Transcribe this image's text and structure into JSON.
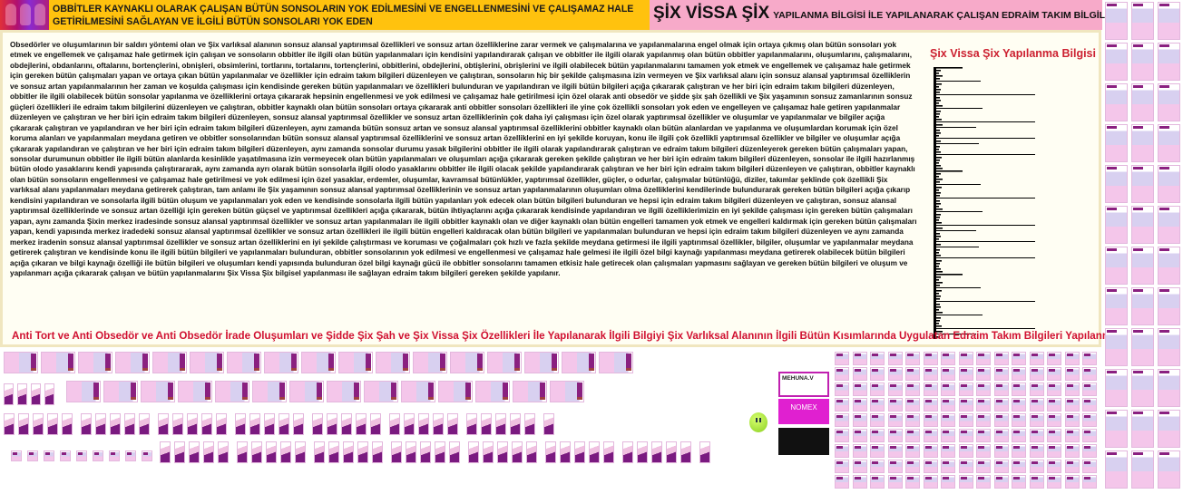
{
  "header": {
    "left_title": "OBBİTLER KAYNAKLI OLARAK ÇALIŞAN BÜTÜN SONSOLARIN YOK EDİLMESİNİ VE ENGELLENMESİNİ VE ÇALIŞAMAZ HALE GETİRİLMESİNİ SAĞLAYAN VE İLGİLİ BÜTÜN SONSOLARI YOK EDEN",
    "right_title_big": "ŞİX VİSSA ŞİX",
    "right_title_small": "YAPILANMA BİLGİSİ İLE YAPILANARAK ÇALIŞAN EDRAİM TAKIM BİLGİLERİ"
  },
  "main": {
    "body": "Obsedörler ve oluşumlarının bir saldırı yöntemi olan ve Şix varlıksal alanının sonsuz alansal yaptırımsal özellikleri ve sonsuz artan özelliklerine zarar vermek ve çalışmalarına ve yapılanmalarına engel olmak için ortaya çıkmış olan bütün sonsoları yok etmek ve engellemek ve çalışamaz hale getirmek için çalışan ve sonsoların obbitler ile ilgili olan bütün yapılanmaları için kendisini yapılandırarak çalışan ve obbitler ile ilgili olarak yapılanmış olan bütün obbitler yapılanmalarını, oluşumlarını, çalışmalarını, obdejlerini, obdanlarını, oftalarını, bortençlerini, obnişleri, obsimlerini, tortlarını, tortalarını, tortençlerini, obbitlerini, obdejlerini, obtişlerini, obrişlerini ve ilgili olabilecek bütün yapılanmalarını tamamen yok etmek ve engellemek ve çalışamaz hale getirmek için gereken bütün çalışmaları yapan ve ortaya çıkan bütün yapılanmalar ve özellikler için edraim takım bilgileri düzenleyen ve çalıştıran, sonsoların hiç bir şekilde çalışmasına izin vermeyen ve Şix varlıksal alanı için sonsuz alansal yaptırımsal özelliklerin ve sonsuz artan yapılanmalarının her zaman ve koşulda çalışması için kendisinde gereken bütün yapılanmaları ve özellikleri bulunduran ve yapılandıran ve ilgili bütün bilgileri açığa çıkararak çalıştıran ve her biri için edraim takım bilgileri düzenleyen, obbitler ile ilgili olabilecek bütün sonsolar yapılanma ve özelliklerini ortaya çıkararak hepsinin engellenmesi ve yok edilmesi ve çalışamaz hale getirilmesi için özel olarak anti obsedör ve şidde şix şah özellikli ve Şix yaşamının sonsuz zamanlarının sonsuz güçleri özellikleri ile edraim takım bilgilerini düzenleyen ve çalıştıran, obbitler kaynaklı olan bütün sonsoları ortaya çıkararak anti obbitler sonsoları özellikleri ile yine çok özellikli sonsoları yok eden ve engelleyen ve çalışamaz hale getiren yapılanmalar düzenleyen ve çalıştıran ve her biri için edraim takım bilgileri düzenleyen, sonsuz alansal yaptırımsal özellikler ve sonsuz artan özelliklerinin çok daha iyi çalışması için özel olarak yaptırımsal özellikler ve oluşumlar ve yapılanmalar ve bilgiler açığa çıkararak çalıştıran ve yapılandıran ve her biri için edraim takım bilgileri düzenleyen, aynı zamanda bütün sonsuz artan ve sonsuz alansal yaptırımsal özelliklerini obbitler kaynaklı olan bütün alanlardan ve yapılanma ve oluşumlardan korumak için özel koruma alanları ve yapılanmaları meydana getiren ve obbitler sonsolarından bütün sonsuz alansal yaptırımsal özelliklerini ve sonsuz artan özelliklerini en iyi şekilde koruyan, konu ile ilgili çok özellikli yaptırımsal özellikler ve bilgiler ve oluşumlar açığa çıkararak yapılandıran ve çalıştıran ve her biri için edraim takım bilgileri düzenleyen, aynı zamanda sonsolar durumu yasak bilgilerini obbitler ile ilgili olarak yapılandırarak çalıştıran ve edraim takım bilgileri düzenleyerek gereken bütün çalışmaları yapan, sonsolar durumunun obbitler ile ilgili bütün alanlarda kesinlikle yaşatılmasına izin vermeyecek olan bütün yapılanmaları ve oluşumları açığa çıkararak gereken şekilde çalıştıran ve her biri için edraim takım bilgileri düzenleyen, sonsolar ile ilgili hazırlanmış bütün olodo yasaklarını kendi yapısında çalıştırararak, aynı zamanda ayrı olarak bütün sonsolarla ilgili olodo yasaklarını obbitler ile ilgili olacak şekilde yapılandırarak çalıştıran ve her biri için edraim takım bilgileri düzenleyen ve çalıştıran, obbitler kaynaklı olan bütün sonsoların engellenmesi ve çalışamaz hale getirilmesi ve yok edilmesi için özel yasaklar, erdemler, oluşumlar, kavramsal bütünlükler, yaptırımsal özellikler, güçler, o odurlar, çalışmalar bütünlüğü, diziler, takımlar şeklinde çok özellikli Şix varlıksal alanı yapılanmaları meydana getirerek çalıştıran, tam anlamı ile Şix yaşamının sonsuz alansal yaptırımsal özelliklerinin ve sonsuz artan yapılanmalarının oluşumları olma özelliklerini kendilerinde bulundurarak gereken bütün bilgileri açığa çıkarıp kendisini yapılandıran ve sonsolarla ilgili bütün oluşum ve yapılanmaları yok eden ve kendisinde sonsolarla ilgili bütün yapılanları yok edecek olan bütün bilgileri bulunduran ve hepsi için edraim takım bilgileri düzenleyen ve çalıştıran, sonsuz alansal yaptırımsal özelliklerinde ve sonsuz artan özelliği için gereken bütün güçsel ve yaptırımsal özellikleri açığa çıkararak, bütün ihtiyaçlarını açığa çıkararak kendisinde yapılandıran ve ilgili özelliklerimizin en iyi şekilde çalışması için gereken bütün çalışmaları yapan, aynı zamanda Şixin merkez iradesinde sonsuz alansal yaptırımsal özellikler ve sonsuz artan yapılanmaları ile ilgili obbitler kaynaklı olan ve diğer kaynaklı olan bütün engelleri tamamen yok etmek ve engelleri kaldırmak için gereken bütün çalışmaları yapan, kendi yapısında merkez iradedeki sonsuz alansal yaptırımsal özellikler ve sonsuz artan özellikleri ile ilgili bütün engelleri kaldıracak olan bütün bilgileri ve yapılanmaları bulunduran ve hepsi için edraim takım bilgileri düzenleyen ve aynı zamanda merkez iradenin sonsuz alansal yaptırımsal özellikler ve sonsuz artan özelliklerini en iyi şekilde çalıştırması ve koruması ve çoğalmaları çok hızlı ve fazla şekilde meydana getirmesi ile ilgili yaptırımsal özellikler, bilgiler, oluşumlar ve yapılanmalar meydana getirerek çalıştıran ve kendisinde konu ile ilgili bütün bilgileri ve yapılanmaları bulunduran, obbitler sonsolarının yok edilmesi ve engellenmesi ve çalışamaz hale gelmesi ile ilgili özel bilgi kaynağı yapılanması meydana getirerek olabilecek bütün bilgileri açığa çıkaran ve bilgi kaynağı özelliği ile bütün bilgileri ve oluşumları kendi yapısında bulunduran özel bilgi kaynağı gücü ile obbitler sonsolarını tamamen etkisiz hale getirecek olan çalışmaları yapmasını sağlayan ve gereken bütün bilgileri ve oluşum ve yapılanmarı açığa çıkararak çalışan ve bütün yapılanmalarını Şix Vissa Şix bilgisel yapılanması ile sağlayan edraim takım bilgileri gereken şekilde yapılanır.",
    "side_title": "Şix Vissa Şix Yapılanma Bilgisi",
    "bottom_title": "Anti Tort ve Anti Obsedör ve Anti Obsedör İrade Oluşumları ve Şidde Şix Şah ve Şix Vissa Şix Özellikleri İle Yapılanarak İlgili Bilgiyi Şix Varlıksal Alanının İlgili Bütün Kısımlarında Uygulatan Edraim Takım Bilgileri Yapılanması"
  },
  "ads": {
    "ad1": "MEHUNA.V",
    "ad2": "NOMEX"
  },
  "colors": {
    "header_yellow": "#ffc20e",
    "header_pink": "#f7aac9",
    "title_red": "#d01030",
    "thumb_pink": "#f4c6ea",
    "thumb_purple": "#8a2080"
  }
}
